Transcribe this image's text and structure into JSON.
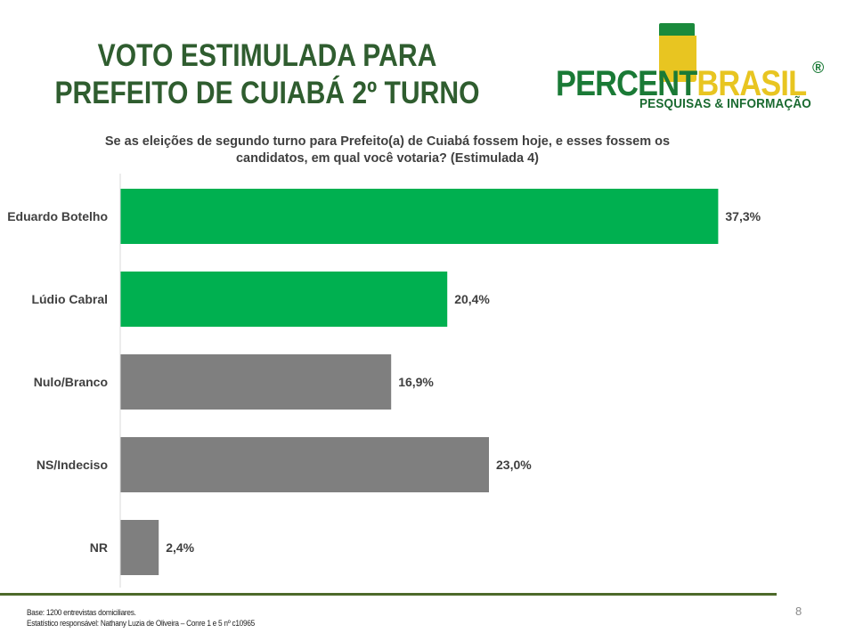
{
  "header": {
    "title_line1": "VOTO ESTIMULADA PARA",
    "title_line2": "PREFEITO DE  CUIABÁ 2º TURNO"
  },
  "logo": {
    "word_part1": "PERCENT",
    "word_part2": "BRASIL",
    "registered": "®",
    "tagline": "PESQUISAS & INFORMAÇÃO"
  },
  "question": {
    "line1": "Se as eleições de segundo turno para Prefeito(a) de Cuiabá fossem hoje, e esses fossem os",
    "line2": "candidatos, em qual você votaria? (Estimulada 4)"
  },
  "chart_data": {
    "type": "bar",
    "orientation": "horizontal",
    "categories": [
      "Eduardo Botelho",
      "Lúdio Cabral",
      "Nulo/Branco",
      "NS/Indeciso",
      "NR"
    ],
    "values": [
      37.3,
      20.4,
      16.9,
      23.0,
      2.4
    ],
    "value_labels": [
      "37,3%",
      "20,4%",
      "16,9%",
      "23,0%",
      "2,4%"
    ],
    "bar_colors": [
      "#00b050",
      "#00b050",
      "#7f7f7f",
      "#7f7f7f",
      "#7f7f7f"
    ],
    "xlim": [
      0,
      40
    ],
    "grid": false,
    "title": "",
    "xlabel": "",
    "ylabel": ""
  },
  "footer": {
    "base": "Base: 1200 entrevistas domiciliares.",
    "statistician": "Estatístico responsável: Nathany Luzia de Oliveira – Conre 1 e 5 nº c10965",
    "page_number": "8"
  }
}
